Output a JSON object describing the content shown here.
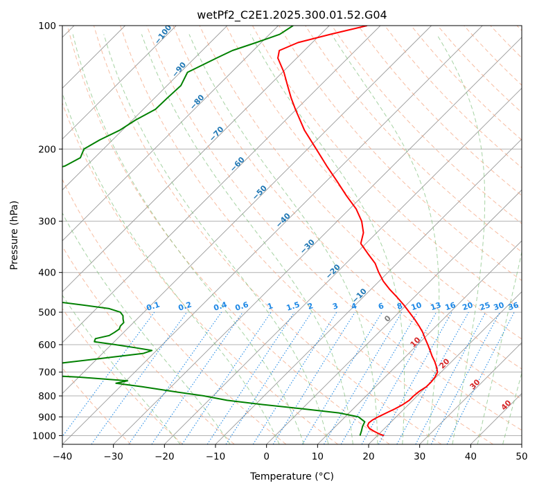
{
  "chart_data": {
    "type": "line",
    "subtype": "skew-T log-P diagram",
    "title": "wetPf2_C2E1.2025.300.01.52.G04",
    "xlabel": "Temperature (°C)",
    "ylabel": "Pressure (hPa)",
    "xlim": [
      -40,
      50
    ],
    "ylim": [
      1050,
      100
    ],
    "x_ticks": [
      -40,
      -30,
      -20,
      -10,
      0,
      10,
      20,
      30,
      40,
      50
    ],
    "x_tick_labels": [
      "−40",
      "−30",
      "−20",
      "−10",
      "0",
      "10",
      "20",
      "30",
      "40",
      "50"
    ],
    "y_ticks": [
      1000,
      900,
      800,
      700,
      600,
      500,
      400,
      300,
      200,
      100
    ],
    "y_tick_labels": [
      "1000",
      "900",
      "800",
      "700",
      "600",
      "500",
      "400",
      "300",
      "200",
      "100"
    ],
    "grid": true,
    "colors": {
      "temperature": "#ff0000",
      "dewpoint": "#008000",
      "dry_adiabat": "#f4a582",
      "moist_adiabat": "#7fbf7b",
      "mixing_ratio": "#1e88e5",
      "isotherm": "#999999"
    },
    "series": [
      {
        "name": "Temperature",
        "color": "#ff0000",
        "p": [
          1000,
          990,
          975,
          960,
          945,
          930,
          915,
          900,
          880,
          860,
          840,
          820,
          800,
          780,
          760,
          740,
          720,
          700,
          680,
          660,
          640,
          620,
          600,
          580,
          560,
          540,
          520,
          500,
          480,
          460,
          440,
          420,
          400,
          380,
          360,
          340,
          320,
          300,
          280,
          260,
          240,
          220,
          200,
          180,
          160,
          150,
          140,
          130,
          120,
          115,
          110,
          105,
          100
        ],
        "t": [
          21.3,
          20.0,
          18.4,
          17.0,
          16.1,
          15.8,
          16.0,
          16.5,
          17.3,
          18.2,
          18.9,
          19.3,
          19.3,
          19.5,
          20.0,
          20.0,
          19.8,
          19.3,
          18.1,
          16.7,
          15.1,
          13.6,
          12.0,
          10.3,
          8.6,
          6.6,
          4.4,
          2.0,
          -0.5,
          -3.3,
          -6.3,
          -9.2,
          -11.8,
          -14.3,
          -17.6,
          -21.0,
          -22.6,
          -25.2,
          -28.7,
          -33.2,
          -37.8,
          -42.9,
          -48.3,
          -54.3,
          -60.2,
          -63.3,
          -66.4,
          -69.7,
          -73.7,
          -74.9,
          -72.8,
          -68.1,
          -62.6
        ]
      },
      {
        "name": "Dewpoint",
        "color": "#008000",
        "p": [
          1000,
          975,
          950,
          925,
          900,
          880,
          860,
          840,
          820,
          800,
          780,
          760,
          745,
          735,
          720,
          710,
          700,
          690,
          680,
          670,
          660,
          650,
          640,
          630,
          620,
          610,
          600,
          590,
          580,
          570,
          560,
          550,
          540,
          530,
          520,
          510,
          500,
          490,
          480,
          470,
          460,
          450,
          440,
          430,
          420,
          410,
          400,
          390,
          380,
          370,
          360,
          350,
          340,
          330,
          320,
          310,
          300,
          290,
          280,
          270,
          260,
          250,
          240,
          230,
          220,
          210,
          200,
          190,
          180,
          170,
          160,
          150,
          140,
          130,
          120,
          115,
          110,
          105,
          100
        ],
        "td": [
          16.6,
          16.0,
          15.3,
          14.8,
          12.6,
          8.0,
          0.0,
          -8.5,
          -16.4,
          -21.8,
          -28.8,
          -35.7,
          -41.5,
          -39.7,
          -50.0,
          -60.0,
          -69.0,
          -64.3,
          -62.0,
          -58.0,
          -54.0,
          -50.0,
          -46.0,
          -42.0,
          -40.9,
          -44.8,
          -49.2,
          -53.9,
          -54.3,
          -52.2,
          -51.8,
          -51.5,
          -51.9,
          -51.9,
          -52.7,
          -53.4,
          -54.6,
          -57.5,
          -63.5,
          -70.0,
          -80.0,
          -89.6,
          -96.6,
          -101.3,
          -102.0,
          -101.2,
          -99.0,
          -95.0,
          -87.5,
          -85.6,
          -84.0,
          -85.0,
          -95.0,
          -103.1,
          -106.7,
          -106.7,
          -104.0,
          -98.0,
          -90.0,
          -88.3,
          -91.5,
          -96.6,
          -102.8,
          -98.5,
          -94.2,
          -92.8,
          -93.8,
          -92.5,
          -90.5,
          -89.4,
          -87.6,
          -87.5,
          -87.3,
          -88.6,
          -85.7,
          -84.1,
          -81.0,
          -78.0,
          -77.1
        ]
      }
    ],
    "dry_adiabat_labels": [
      "−100",
      "−90",
      "−80",
      "−70",
      "−60",
      "−50",
      "−40",
      "−30",
      "−20",
      "−10",
      "0",
      "10",
      "20",
      "30",
      "40"
    ],
    "dry_adiabat_values": [
      -100,
      -90,
      -80,
      -70,
      -60,
      -50,
      -40,
      -30,
      -20,
      -10,
      0,
      10,
      20,
      30,
      40
    ],
    "mixing_ratio_labels": [
      "0.1",
      "0.2",
      "0.4",
      "0.6",
      "1",
      "1.5",
      "2",
      "3",
      "4",
      "6",
      "8",
      "10",
      "13",
      "16",
      "20",
      "25",
      "30",
      "36"
    ],
    "mixing_ratio_values": [
      0.1,
      0.2,
      0.4,
      0.6,
      1,
      1.5,
      2,
      3,
      4,
      6,
      8,
      10,
      13,
      16,
      20,
      25,
      30,
      36
    ]
  }
}
